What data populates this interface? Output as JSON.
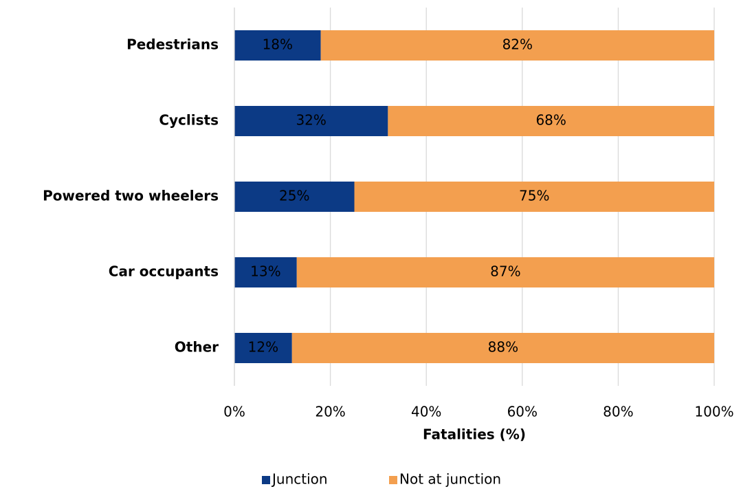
{
  "chart_data": {
    "type": "stacked-barh",
    "categories": [
      "Pedestrians",
      "Cyclists",
      "Powered two wheelers",
      "Car occupants",
      "Other"
    ],
    "series": [
      {
        "name": "Junction",
        "color": "#0c3a85",
        "label_color": "#ffffff",
        "values": [
          18,
          32,
          25,
          13,
          12
        ],
        "value_labels": [
          "18%",
          "32%",
          "25%",
          "13%",
          "12%"
        ]
      },
      {
        "name": "Not at junction",
        "color": "#f39f4f",
        "label_color": "#000000",
        "values": [
          82,
          68,
          75,
          87,
          88
        ],
        "value_labels": [
          "82%",
          "68%",
          "75%",
          "87%",
          "88%"
        ]
      }
    ],
    "xlim": [
      0,
      100
    ],
    "xticks": [
      {
        "value": 0,
        "label": "0%"
      },
      {
        "value": 20,
        "label": "20%"
      },
      {
        "value": 40,
        "label": "40%"
      },
      {
        "value": 60,
        "label": "60%"
      },
      {
        "value": 80,
        "label": "80%"
      },
      {
        "value": 100,
        "label": "100%"
      }
    ],
    "x_label": "Fatalities (%)",
    "grid": true,
    "legend": "bottom"
  }
}
